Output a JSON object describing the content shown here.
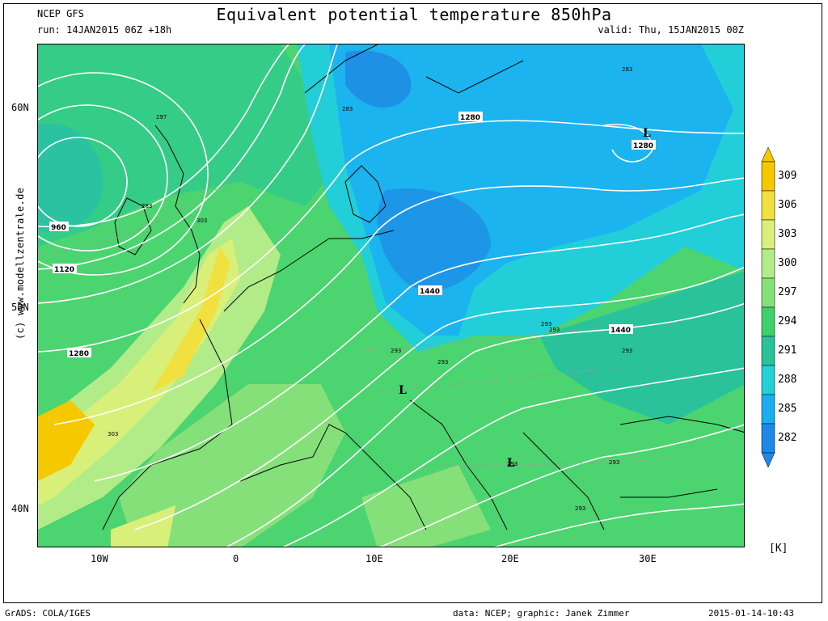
{
  "header": {
    "model": "NCEP GFS",
    "run": "run: 14JAN2015 06Z +18h",
    "title": "Equivalent potential temperature 850hPa",
    "valid": "valid: Thu, 15JAN2015 00Z"
  },
  "credit_side": "(c)  www.modellzentrale.de",
  "footer": {
    "left": "GrADS: COLA/IGES",
    "center": "data: NCEP; graphic: Janek Zimmer",
    "right": "2015-01-14-10:43"
  },
  "y_axis_labels": [
    "60N",
    "50N",
    "40N"
  ],
  "x_axis_labels": [
    "10W",
    "0",
    "10E",
    "20E",
    "30E"
  ],
  "legend": {
    "unit": "[K]",
    "levels": [
      "309",
      "306",
      "303",
      "300",
      "297",
      "294",
      "291",
      "288",
      "285",
      "282"
    ],
    "colors": [
      "#f5c800",
      "#f0e040",
      "#d8f07a",
      "#b2ec88",
      "#86e07a",
      "#3ed06a",
      "#2ac29a",
      "#22d0d6",
      "#1aaef0",
      "#1e88e8"
    ]
  },
  "map": {
    "pressure_labels": [
      "960",
      "1120",
      "1280",
      "1280",
      "1280",
      "1440",
      "1440"
    ],
    "low_markers": [
      "L",
      "L",
      "L"
    ],
    "theta_labels": [
      "297",
      "283",
      "303",
      "283",
      "303",
      "293",
      "293",
      "293",
      "293",
      "293",
      "293",
      "293",
      "293",
      "283"
    ]
  }
}
